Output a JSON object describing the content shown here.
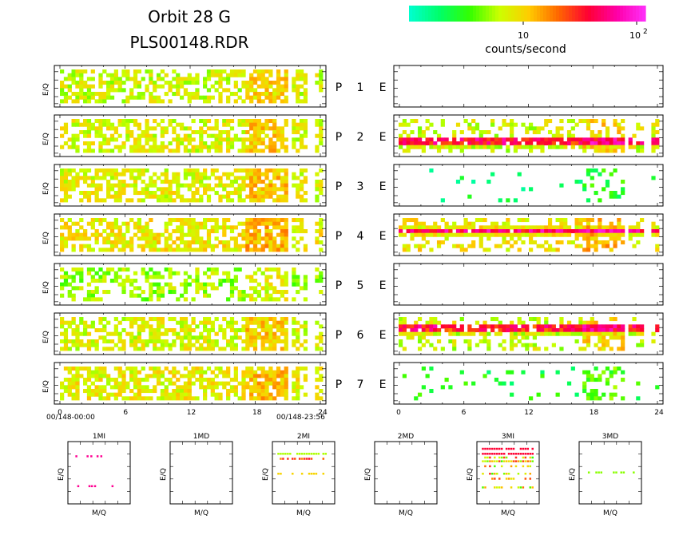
{
  "header": {
    "title_line1": "Orbit 28 G",
    "title_line2": "PLS00148.RDR"
  },
  "colorbar": {
    "label": "counts/second",
    "tick_10": "10",
    "tick_100_base": "10",
    "tick_100_exp": "2",
    "colors": [
      "#00ffcc",
      "#00ff66",
      "#33ff00",
      "#ccff00",
      "#ffcc00",
      "#ff6600",
      "#ff0033",
      "#ff00aa",
      "#ff33ff"
    ]
  },
  "chart_data": {
    "type": "heatmap",
    "title": "Orbit 28 G PLS00148.RDR",
    "colorbar_label": "counts/second",
    "color_scale": "log",
    "colorbar_ticks": [
      "10",
      "10^2"
    ],
    "x_ticks": [
      "0",
      "6",
      "12",
      "18",
      "24"
    ],
    "xlim": [
      0,
      24
    ],
    "time_start": "00/148-00:00",
    "time_end": "00/148-23:56",
    "ylabel": "E/Q",
    "panels": [
      {
        "id": "P1",
        "label": "P",
        "number": "1",
        "energy_label": "E",
        "left_density": 0.55,
        "left_level": 0.3,
        "right_density": 0.0,
        "right_level": 0.0
      },
      {
        "id": "P2",
        "label": "P",
        "number": "2",
        "energy_label": "E",
        "left_density": 0.6,
        "left_level": 0.32,
        "right_density": 0.55,
        "right_level": 0.3,
        "right_band": [
          0.45,
          0.8
        ]
      },
      {
        "id": "P3",
        "label": "P",
        "number": "3",
        "energy_label": "E",
        "left_density": 0.65,
        "left_level": 0.33,
        "right_density": 0.02,
        "right_level": 0.05
      },
      {
        "id": "P4",
        "label": "P",
        "number": "4",
        "energy_label": "E",
        "left_density": 0.62,
        "left_level": 0.35,
        "right_density": 0.6,
        "right_level": 0.35,
        "right_band": [
          0.2,
          0.55
        ]
      },
      {
        "id": "P5",
        "label": "P",
        "number": "5",
        "energy_label": "E",
        "left_density": 0.45,
        "left_level": 0.25,
        "right_density": 0.0,
        "right_level": 0.0
      },
      {
        "id": "P6",
        "label": "P",
        "number": "6",
        "energy_label": "E",
        "left_density": 0.6,
        "left_level": 0.32,
        "right_density": 0.5,
        "right_level": 0.3,
        "right_band": [
          0.15,
          0.5
        ]
      },
      {
        "id": "P7",
        "label": "P",
        "number": "7",
        "energy_label": "E",
        "left_density": 0.62,
        "left_level": 0.34,
        "right_density": 0.08,
        "right_level": 0.1
      }
    ],
    "mass_spectra": [
      {
        "title": "1MI",
        "xlabel": "M/Q",
        "ylabel": "E/Q",
        "points": [
          [
            0.12,
            0.78
          ],
          [
            0.3,
            0.78
          ],
          [
            0.36,
            0.78
          ],
          [
            0.46,
            0.78
          ],
          [
            0.52,
            0.78
          ],
          [
            0.15,
            0.3
          ],
          [
            0.33,
            0.3
          ],
          [
            0.37,
            0.3
          ],
          [
            0.42,
            0.3
          ],
          [
            0.7,
            0.3
          ]
        ],
        "color_level": 0.85
      },
      {
        "title": "1MD",
        "xlabel": "M/Q",
        "ylabel": "E/Q",
        "points": [],
        "color_level": 0.3
      },
      {
        "title": "2MI",
        "xlabel": "M/Q",
        "ylabel": "E/Q",
        "points": "band",
        "color_level": 0.5
      },
      {
        "title": "2MD",
        "xlabel": "M/Q",
        "ylabel": "E/Q",
        "points": [],
        "color_level": 0.3
      },
      {
        "title": "3MI",
        "xlabel": "M/Q",
        "ylabel": "E/Q",
        "points": "dense-band",
        "color_level": 0.6
      },
      {
        "title": "3MD",
        "xlabel": "M/Q",
        "ylabel": "E/Q",
        "points": "faint-line",
        "color_level": 0.3
      }
    ]
  }
}
